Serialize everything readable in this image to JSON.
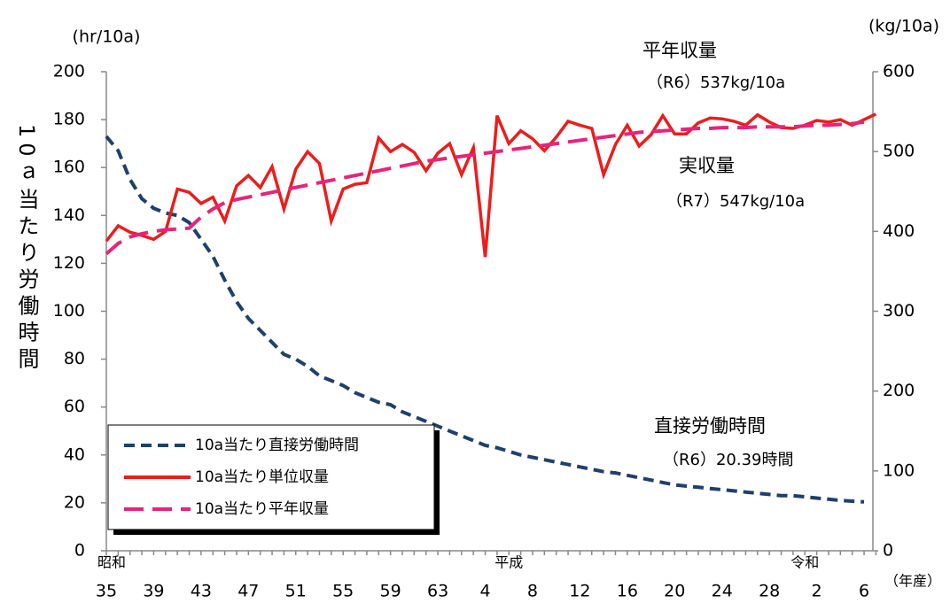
{
  "chart_data": {
    "type": "line",
    "y_label": "(hr/10a)",
    "y2_label": "(kg/10a)",
    "y_title": "10ａ当たり労働時間",
    "x_label": "（年産）",
    "eras": [
      "昭和",
      "平成",
      "令和"
    ],
    "categories": [
      "35",
      null,
      null,
      null,
      "39",
      null,
      null,
      null,
      "43",
      null,
      null,
      null,
      "47",
      null,
      null,
      null,
      "51",
      null,
      null,
      null,
      "55",
      null,
      null,
      null,
      "59",
      null,
      null,
      null,
      "63",
      null,
      null,
      null,
      "4",
      null,
      null,
      null,
      "8",
      null,
      null,
      null,
      "12",
      null,
      null,
      null,
      "16",
      null,
      null,
      null,
      "20",
      null,
      null,
      null,
      "24",
      null,
      null,
      null,
      "28",
      null,
      null,
      null,
      "2",
      null,
      null,
      null,
      "6",
      null
    ],
    "series": [
      {
        "name": "10a当たり直接労働時間",
        "color": "#1f3f6e",
        "dash": "12,7",
        "axis": "y",
        "values": [
          173,
          167,
          155,
          147,
          143,
          141,
          140,
          137,
          130,
          123,
          113,
          104,
          97,
          92,
          87,
          82,
          80,
          77,
          73,
          71,
          69,
          66,
          64,
          62,
          61,
          58,
          56,
          54,
          52,
          50,
          48,
          46,
          44,
          43,
          41.5,
          40,
          39,
          38,
          37,
          36,
          35,
          34,
          33,
          32.5,
          31.5,
          30.5,
          29.5,
          28.5,
          27.5,
          27,
          26.5,
          26,
          25.5,
          25,
          24.5,
          24,
          23.5,
          23,
          23,
          22.5,
          22,
          21.5,
          21,
          20.7,
          20.39,
          null
        ]
      },
      {
        "name": "10a当たり単位収量",
        "color": "#ee1c1c",
        "dash": "",
        "axis": "y2",
        "values": [
          388,
          407,
          399,
          395,
          390,
          400,
          453,
          449,
          435,
          443,
          413,
          457,
          470,
          455,
          481,
          428,
          478,
          500,
          485,
          413,
          453,
          459,
          461,
          517,
          500,
          509,
          499,
          476,
          498,
          510,
          471,
          505,
          368,
          545,
          510,
          526,
          516,
          501,
          518,
          538,
          533,
          529,
          471,
          509,
          533,
          507,
          521,
          545,
          522,
          522,
          536,
          542,
          541,
          538,
          533,
          546,
          537,
          530,
          529,
          533,
          539,
          537,
          540,
          533,
          540,
          547
        ]
      },
      {
        "name": "10a当たり平年収量",
        "color": "#e8237a",
        "dash": "22,10",
        "axis": "y2",
        "values": [
          372,
          385,
          393,
          397,
          400,
          402,
          403,
          404,
          418,
          428,
          436,
          440,
          443,
          446,
          449,
          452,
          455,
          458,
          461,
          464,
          467,
          470,
          473,
          476,
          479,
          482,
          485,
          488,
          490,
          492,
          494,
          496,
          498,
          500,
          502,
          504,
          506,
          508,
          510,
          512,
          514,
          516,
          518,
          520,
          522,
          524,
          525,
          526,
          527,
          528,
          529,
          529,
          530,
          530,
          530,
          531,
          531,
          531,
          531,
          532,
          533,
          533,
          534,
          535,
          537,
          null
        ]
      }
    ],
    "annotations": [
      "平年収量",
      "（R6）537kg/10a",
      "実収量",
      "（R7）547kg/10a",
      "直接労働時間",
      "（R6）20.39時間"
    ],
    "ylim": [
      0,
      200
    ],
    "yticks": [
      0,
      20,
      40,
      60,
      80,
      100,
      120,
      140,
      160,
      180,
      200
    ],
    "y2lim": [
      0,
      600
    ],
    "y2ticks": [
      0,
      100,
      200,
      300,
      400,
      500,
      600
    ]
  }
}
